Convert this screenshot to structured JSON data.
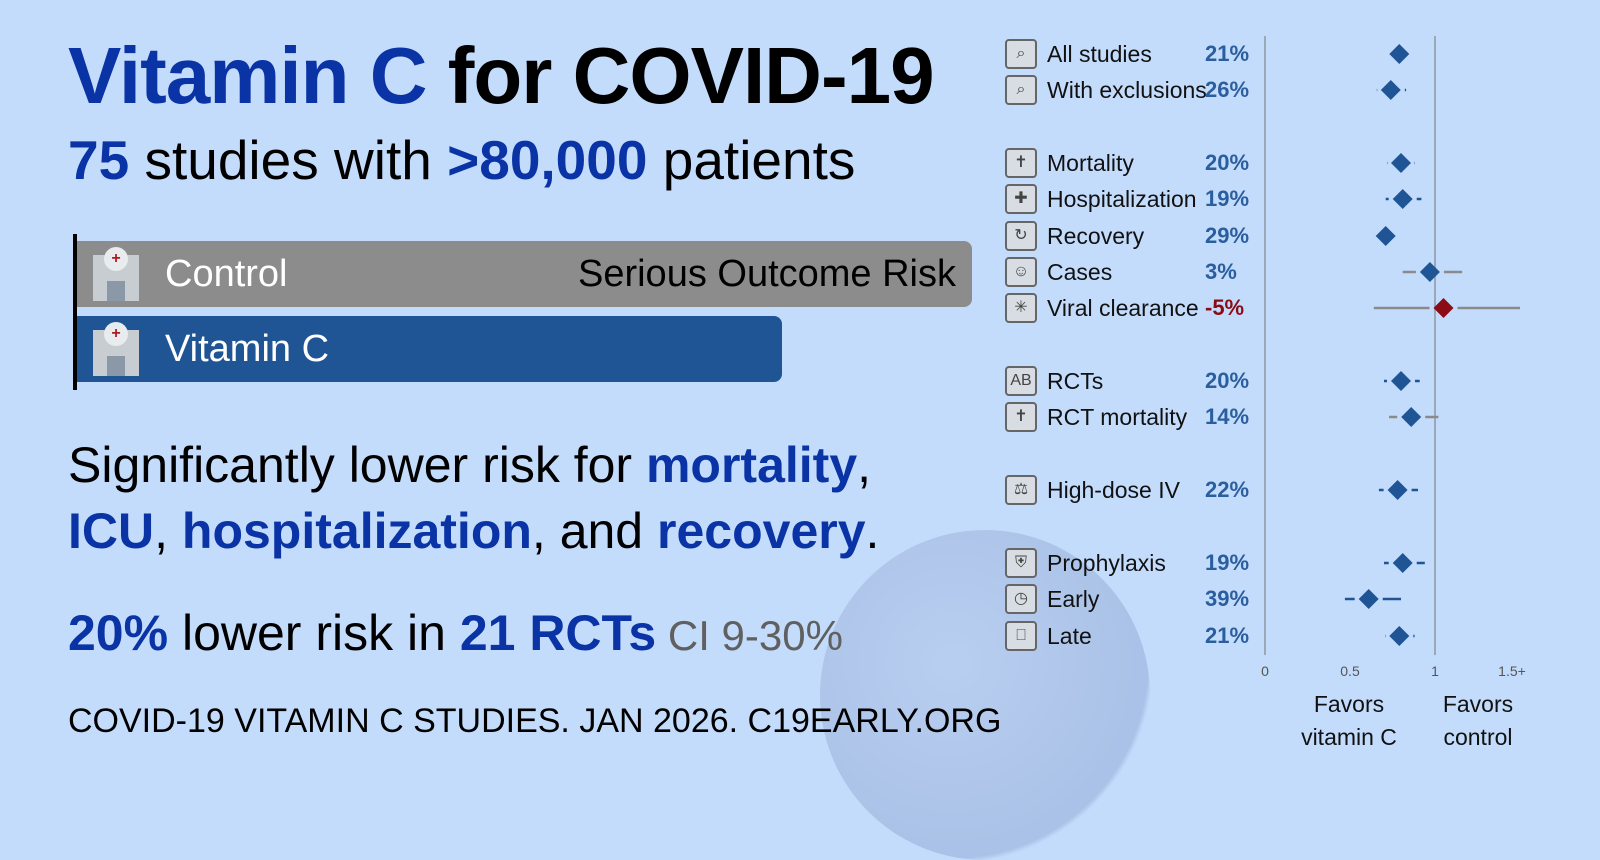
{
  "header": {
    "title_drug": "Vitamin C",
    "title_rest": " for COVID-19",
    "sub_studies_num": "75",
    "sub_studies_text": " studies with ",
    "sub_patients_num": ">80,000",
    "sub_patients_text": " patients"
  },
  "risk_bars": {
    "control_label": "Control",
    "treatment_label": "Vitamin C",
    "metric_label": "Serious Outcome Risk",
    "control_color": "#8c8c8c",
    "treatment_color": "#1f5595"
  },
  "finding": {
    "line1_prefix": "Significantly lower risk for ",
    "mortality": "mortality",
    "comma1": ",",
    "icu": "ICU",
    "comma2": ", ",
    "hospitalization": "hospitalization",
    "and": ", and ",
    "recovery": "recovery",
    "period": "."
  },
  "rct_summary": {
    "pct": "20%",
    "text": " lower risk in ",
    "count": "21 RCTs",
    "ci": " CI 9-30%"
  },
  "footer": "COVID-19 VITAMIN C STUDIES. JAN 2026. C19EARLY.ORG",
  "colors": {
    "background": "#c4dcfc",
    "accent_blue": "#0a33a6",
    "marker_blue": "#1f5595",
    "negative_red": "#8b0c14"
  },
  "chart_data": {
    "type": "scatter",
    "subtype": "forest_plot",
    "title": "",
    "xlabel_left": "Favors vitamin C",
    "xlabel_right": "Favors control",
    "xlim": [
      0,
      1.5
    ],
    "xticks": [
      "0",
      "0.5",
      "1",
      "1.5+"
    ],
    "reference_line": 1,
    "rows": [
      {
        "label": "All studies",
        "icon": "studies-search-icon",
        "pct": "21%",
        "rr": 0.79,
        "ci": [
          0.79,
          0.79
        ],
        "group": 0
      },
      {
        "label": "With exclusions",
        "icon": "studies-search-icon",
        "pct": "26%",
        "rr": 0.74,
        "ci": [
          0.66,
          0.83
        ],
        "group": 0
      },
      {
        "label": "Mortality",
        "icon": "tombstone-icon",
        "pct": "20%",
        "rr": 0.8,
        "ci": [
          0.72,
          0.88
        ],
        "group": 1
      },
      {
        "label": "Hospitalization",
        "icon": "hospital-icon",
        "pct": "19%",
        "rr": 0.81,
        "ci": [
          0.71,
          0.92
        ],
        "group": 1
      },
      {
        "label": "Recovery",
        "icon": "recovery-icon",
        "pct": "29%",
        "rr": 0.71,
        "ci": [
          0.71,
          0.71
        ],
        "group": 1
      },
      {
        "label": "Cases",
        "icon": "masked-person-icon",
        "pct": "3%",
        "rr": 0.97,
        "ci": [
          0.81,
          1.16
        ],
        "group": 1,
        "ci_color": "gray"
      },
      {
        "label": "Viral clearance",
        "icon": "virus-icon",
        "pct": "-5%",
        "rr": 1.05,
        "ci": [
          0.64,
          1.5
        ],
        "group": 1,
        "negative": true,
        "ci_color": "gray"
      },
      {
        "label": "RCTs",
        "icon": "ab-test-icon",
        "pct": "20%",
        "rr": 0.8,
        "ci": [
          0.7,
          0.91
        ],
        "group": 2
      },
      {
        "label": "RCT mortality",
        "icon": "tombstone-icon",
        "pct": "14%",
        "rr": 0.86,
        "ci": [
          0.73,
          1.02
        ],
        "group": 2,
        "ci_color": "gray"
      },
      {
        "label": "High-dose IV",
        "icon": "iv-bag-icon",
        "pct": "22%",
        "rr": 0.78,
        "ci": [
          0.67,
          0.9
        ],
        "group": 3
      },
      {
        "label": "Prophylaxis",
        "icon": "shield-icon",
        "pct": "19%",
        "rr": 0.81,
        "ci": [
          0.7,
          0.94
        ],
        "group": 4
      },
      {
        "label": "Early",
        "icon": "clock-pills-icon",
        "pct": "39%",
        "rr": 0.61,
        "ci": [
          0.47,
          0.8
        ],
        "group": 4
      },
      {
        "label": "Late",
        "icon": "hospital-bed-icon",
        "pct": "21%",
        "rr": 0.79,
        "ci": [
          0.71,
          0.88
        ],
        "group": 4
      }
    ]
  }
}
